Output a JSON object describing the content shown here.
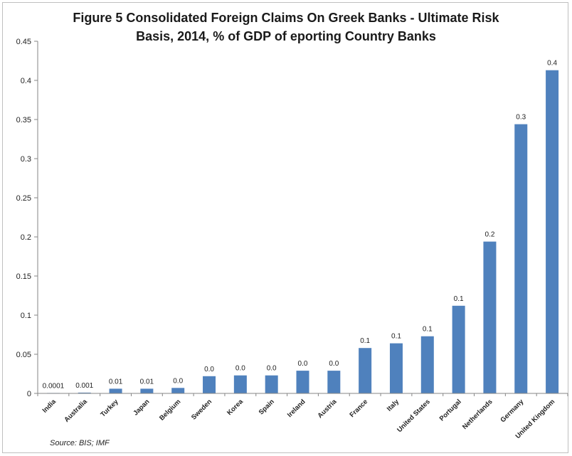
{
  "chart_data": {
    "type": "bar",
    "title_line1": "Figure 5   Consolidated Foreign Claims On Greek Banks - Ultimate Risk",
    "title_line2": "Basis, 2014, % of GDP of eporting Country Banks",
    "source": "Source: BIS; IMF",
    "categories": [
      "India",
      "Australia",
      "Turkey",
      "Japan",
      "Belgium",
      "Sweden",
      "Korea",
      "Spain",
      "Ireland",
      "Austria",
      "France",
      "Italy",
      "United States",
      "Portugal",
      "Netherlands",
      "Germany",
      "United Kingdom"
    ],
    "values": [
      0.0001,
      0.001,
      0.006,
      0.006,
      0.007,
      0.022,
      0.023,
      0.023,
      0.029,
      0.029,
      0.058,
      0.064,
      0.073,
      0.112,
      0.194,
      0.344,
      0.413
    ],
    "data_labels": [
      "0.0001",
      "0.001",
      "0.01",
      "0.01",
      "0.0",
      "0.0",
      "0.0",
      "0.0",
      "0.0",
      "0.0",
      "0.1",
      "0.1",
      "0.1",
      "0.1",
      "0.2",
      "0.3",
      "0.4"
    ],
    "y_ticks": [
      "0",
      "0.05",
      "0.1",
      "0.15",
      "0.2",
      "0.25",
      "0.3",
      "0.35",
      "0.4",
      "0.45"
    ],
    "ylim": [
      0,
      0.45
    ],
    "grid": false,
    "legend": "none",
    "bar_color": "#4f81bd"
  }
}
